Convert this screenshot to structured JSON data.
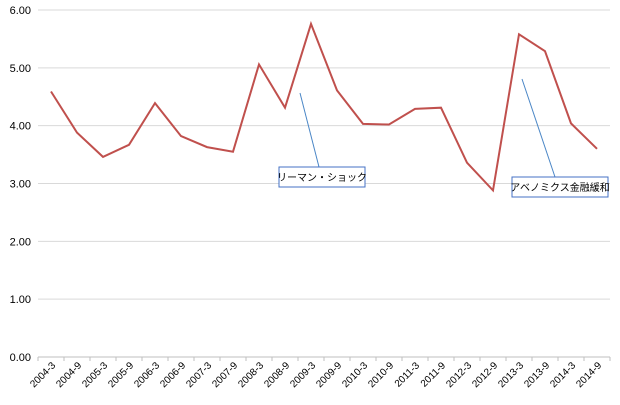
{
  "chart_data": {
    "type": "line",
    "title": "",
    "xlabel": "",
    "ylabel": "",
    "ylim": [
      0,
      6
    ],
    "yticks": [
      "0.00",
      "1.00",
      "2.00",
      "3.00",
      "4.00",
      "5.00",
      "6.00"
    ],
    "grid": true,
    "categories": [
      "2004-3",
      "2004-9",
      "2005-3",
      "2005-9",
      "2006-3",
      "2006-9",
      "2007-3",
      "2007-9",
      "2008-3",
      "2008-9",
      "2009-3",
      "2009-9",
      "2010-3",
      "2010-9",
      "2011-3",
      "2011-9",
      "2012-3",
      "2012-9",
      "2013-3",
      "2013-9",
      "2014-3",
      "2014-9"
    ],
    "series": [
      {
        "name": "",
        "color": "#c0504d",
        "values": [
          4.59,
          3.88,
          3.46,
          3.67,
          4.39,
          3.82,
          3.63,
          3.55,
          5.06,
          4.31,
          5.76,
          4.61,
          4.03,
          4.02,
          4.29,
          4.31,
          3.36,
          2.88,
          5.58,
          5.29,
          4.04,
          3.6
        ]
      }
    ],
    "annotations": [
      {
        "text": "リーマン・ショック",
        "category": "2008-9"
      },
      {
        "text": "アベノミクス金融緩和",
        "category": "2012-9"
      }
    ]
  },
  "colors": {
    "line": "#c0504d",
    "annotation_border": "#4472c4",
    "annotation_pointer": "#4a86c6",
    "grid": "#d9d9d9"
  }
}
